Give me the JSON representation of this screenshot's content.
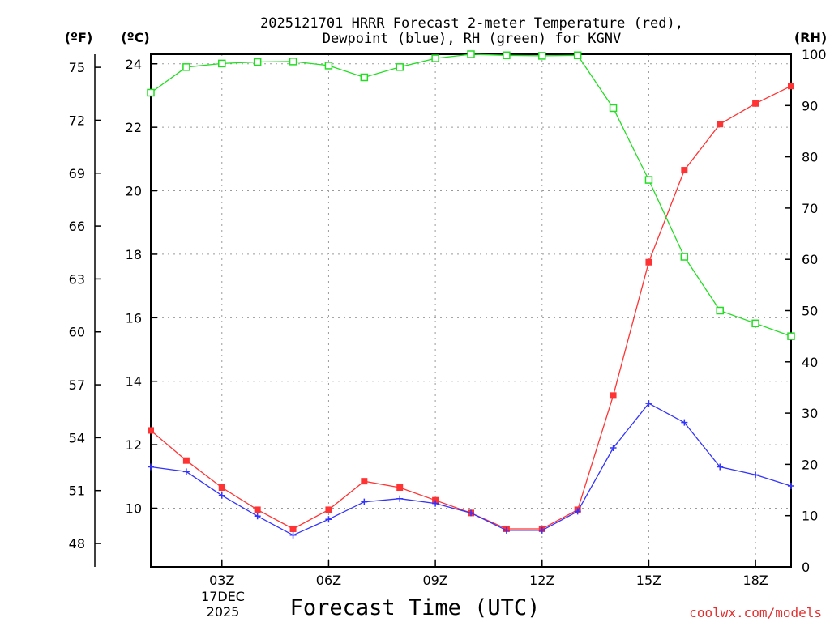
{
  "chart_data": {
    "type": "line",
    "title_line1": "2025121701 HRRR Forecast 2-meter Temperature (red),",
    "title_line2": "Dewpoint (blue), RH (green) for KGNV",
    "left_axis_f_label": "(ºF)",
    "left_axis_c_label": "(ºC)",
    "right_axis_label": "(RH)",
    "xlabel": "Forecast Time (UTC)",
    "date_label_day": "17DEC",
    "date_label_year": "2025",
    "credit": "coolwx.com/models",
    "x": [
      1,
      2,
      3,
      4,
      5,
      6,
      7,
      8,
      9,
      10,
      11,
      12,
      13,
      14,
      15,
      16,
      17,
      18,
      19
    ],
    "xlim": [
      1,
      19
    ],
    "x_ticks": [
      {
        "x": 3,
        "label": "03Z"
      },
      {
        "x": 6,
        "label": "06Z"
      },
      {
        "x": 9,
        "label": "09Z"
      },
      {
        "x": 12,
        "label": "12Z"
      },
      {
        "x": 15,
        "label": "15Z"
      },
      {
        "x": 18,
        "label": "18Z"
      }
    ],
    "celsius_axis": {
      "range": [
        8.15,
        24.3
      ],
      "ticks": [
        "10",
        "12",
        "14",
        "16",
        "18",
        "20",
        "22",
        "24"
      ]
    },
    "fahrenheit_axis": {
      "ticks": [
        "48",
        "51",
        "54",
        "57",
        "60",
        "63",
        "66",
        "69",
        "72",
        "75"
      ]
    },
    "rh_axis": {
      "range": [
        0,
        100
      ],
      "ticks": [
        "0",
        "10",
        "20",
        "30",
        "40",
        "50",
        "60",
        "70",
        "80",
        "90",
        "100"
      ]
    },
    "series": [
      {
        "name": "Temperature",
        "axis": "celsius",
        "color": "#ff3333",
        "marker": "filled-square",
        "values": [
          12.45,
          11.5,
          10.65,
          9.95,
          9.35,
          9.95,
          10.85,
          10.65,
          10.25,
          9.85,
          9.35,
          9.35,
          9.95,
          13.55,
          17.75,
          20.65,
          22.1,
          22.75,
          23.3
        ]
      },
      {
        "name": "Dewpoint",
        "axis": "celsius",
        "color": "#3333ff",
        "marker": "plus",
        "values": [
          11.3,
          11.15,
          10.4,
          9.75,
          9.15,
          9.65,
          10.2,
          10.3,
          10.15,
          9.85,
          9.3,
          9.3,
          9.9,
          11.9,
          13.3,
          12.7,
          11.3,
          11.05,
          10.7
        ]
      },
      {
        "name": "RH",
        "axis": "rh",
        "color": "#22dd22",
        "marker": "open-square",
        "values": [
          92.5,
          97.5,
          98.2,
          98.5,
          98.6,
          97.8,
          95.5,
          97.5,
          99.2,
          100,
          99.8,
          99.7,
          99.8,
          89.5,
          75.5,
          60.5,
          50,
          47.5,
          45
        ]
      }
    ]
  }
}
